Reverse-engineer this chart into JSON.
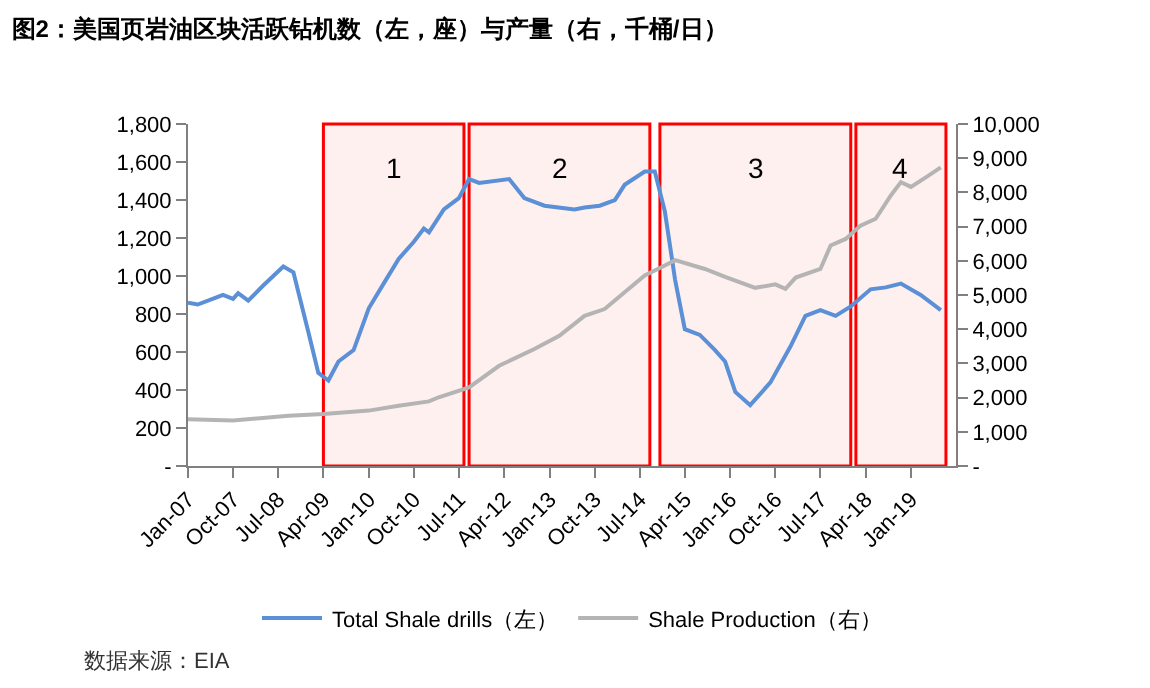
{
  "chart_data": {
    "type": "line",
    "title": "图2：美国页岩油区块活跃钻机数（左，座）与产量（右，千桶/日）",
    "xlim": [
      "2007-01",
      "2019-10"
    ],
    "xticks": [
      {
        "value": "2007-01",
        "label": "Jan-07"
      },
      {
        "value": "2007-10",
        "label": "Oct-07"
      },
      {
        "value": "2008-07",
        "label": "Jul-08"
      },
      {
        "value": "2009-04",
        "label": "Apr-09"
      },
      {
        "value": "2010-01",
        "label": "Jan-10"
      },
      {
        "value": "2010-10",
        "label": "Oct-10"
      },
      {
        "value": "2011-07",
        "label": "Jul-11"
      },
      {
        "value": "2012-04",
        "label": "Apr-12"
      },
      {
        "value": "2013-01",
        "label": "Jan-13"
      },
      {
        "value": "2013-10",
        "label": "Oct-13"
      },
      {
        "value": "2014-07",
        "label": "Jul-14"
      },
      {
        "value": "2015-04",
        "label": "Apr-15"
      },
      {
        "value": "2016-01",
        "label": "Jan-16"
      },
      {
        "value": "2016-10",
        "label": "Oct-16"
      },
      {
        "value": "2017-07",
        "label": "Jul-17"
      },
      {
        "value": "2018-04",
        "label": "Apr-18"
      },
      {
        "value": "2019-01",
        "label": "Jan-19"
      }
    ],
    "ylim": [
      0,
      1800
    ],
    "yticks": [
      {
        "value": 0,
        "label": "-"
      },
      {
        "value": 200,
        "label": "200"
      },
      {
        "value": 400,
        "label": "400"
      },
      {
        "value": 600,
        "label": "600"
      },
      {
        "value": 800,
        "label": "800"
      },
      {
        "value": 1000,
        "label": "1,000"
      },
      {
        "value": 1200,
        "label": "1,200"
      },
      {
        "value": 1400,
        "label": "1,400"
      },
      {
        "value": 1600,
        "label": "1,600"
      },
      {
        "value": 1800,
        "label": "1,800"
      }
    ],
    "y2lim": [
      0,
      10000
    ],
    "y2ticks": [
      {
        "value": 0,
        "label": "-"
      },
      {
        "value": 1000,
        "label": "1,000"
      },
      {
        "value": 2000,
        "label": "2,000"
      },
      {
        "value": 3000,
        "label": "3,000"
      },
      {
        "value": 4000,
        "label": "4,000"
      },
      {
        "value": 5000,
        "label": "5,000"
      },
      {
        "value": 6000,
        "label": "6,000"
      },
      {
        "value": 7000,
        "label": "7,000"
      },
      {
        "value": 8000,
        "label": "8,000"
      },
      {
        "value": 9000,
        "label": "9,000"
      },
      {
        "value": 10000,
        "label": "10,000"
      }
    ],
    "grid": false,
    "legend": "bottom",
    "marker": "none",
    "line_style": "solid",
    "series": [
      {
        "name": "Total Shale drills（左）",
        "color": "#5b8fd6",
        "x": [
          "2007-01",
          "2007-03",
          "2007-07",
          "2007-08",
          "2007-10",
          "2007-11",
          "2008-01",
          "2008-04",
          "2008-06",
          "2008-08",
          "2008-10",
          "2009-01",
          "2009-03",
          "2009-05",
          "2009-07",
          "2009-10",
          "2010-01",
          "2010-04",
          "2010-07",
          "2010-10",
          "2010-12",
          "2011-01",
          "2011-04",
          "2011-07",
          "2011-09",
          "2011-11",
          "2012-05",
          "2012-08",
          "2012-12",
          "2013-06",
          "2013-08",
          "2013-11",
          "2014-02",
          "2014-04",
          "2014-08",
          "2014-10",
          "2014-12",
          "2015-02",
          "2015-04",
          "2015-07",
          "2015-10",
          "2015-12",
          "2016-02",
          "2016-05",
          "2016-09",
          "2017-01",
          "2017-04",
          "2017-07",
          "2017-10",
          "2018-01",
          "2018-05",
          "2018-08",
          "2018-11",
          "2019-03",
          "2019-07"
        ],
        "values": [
          860,
          850,
          890,
          900,
          880,
          910,
          870,
          950,
          1000,
          1050,
          1020,
          700,
          490,
          450,
          550,
          610,
          830,
          960,
          1090,
          1180,
          1250,
          1230,
          1350,
          1410,
          1510,
          1490,
          1510,
          1410,
          1370,
          1350,
          1360,
          1370,
          1400,
          1480,
          1550,
          1550,
          1340,
          980,
          720,
          690,
          610,
          550,
          390,
          320,
          440,
          630,
          790,
          820,
          790,
          840,
          930,
          940,
          960,
          900,
          820
        ]
      },
      {
        "name": "Shale Production（右）",
        "color": "#b4b4b4",
        "axis": "y2",
        "x": [
          "2007-01",
          "2007-10",
          "2008-09",
          "2009-04",
          "2010-01",
          "2010-07",
          "2011-01",
          "2011-03",
          "2011-09",
          "2012-03",
          "2012-10",
          "2013-03",
          "2013-08",
          "2013-12",
          "2014-04",
          "2014-08",
          "2014-12",
          "2015-02",
          "2015-08",
          "2015-12",
          "2016-06",
          "2016-10",
          "2016-12",
          "2017-02",
          "2017-07",
          "2017-09",
          "2017-12",
          "2018-03",
          "2018-06",
          "2018-09",
          "2018-11",
          "2019-01",
          "2019-04",
          "2019-07"
        ],
        "values": [
          1370,
          1330,
          1470,
          1520,
          1620,
          1760,
          1890,
          2010,
          2300,
          2930,
          3420,
          3810,
          4390,
          4590,
          5080,
          5570,
          5860,
          6020,
          5760,
          5530,
          5210,
          5310,
          5180,
          5510,
          5760,
          6450,
          6640,
          7030,
          7230,
          7910,
          8300,
          8160,
          8440,
          8730
        ]
      }
    ],
    "bands": [
      {
        "axis": "x",
        "from": "2009-04",
        "to": "2011-08",
        "label": "1",
        "color": "#ff0000"
      },
      {
        "axis": "x",
        "from": "2011-09",
        "to": "2014-09",
        "label": "2",
        "color": "#ff0000"
      },
      {
        "axis": "x",
        "from": "2014-11",
        "to": "2018-01",
        "label": "3",
        "color": "#ff0000"
      },
      {
        "axis": "x",
        "from": "2018-02",
        "to": "2019-08",
        "label": "4",
        "color": "#ff0000"
      }
    ],
    "annotations": [
      "数据来源：EIA"
    ]
  }
}
